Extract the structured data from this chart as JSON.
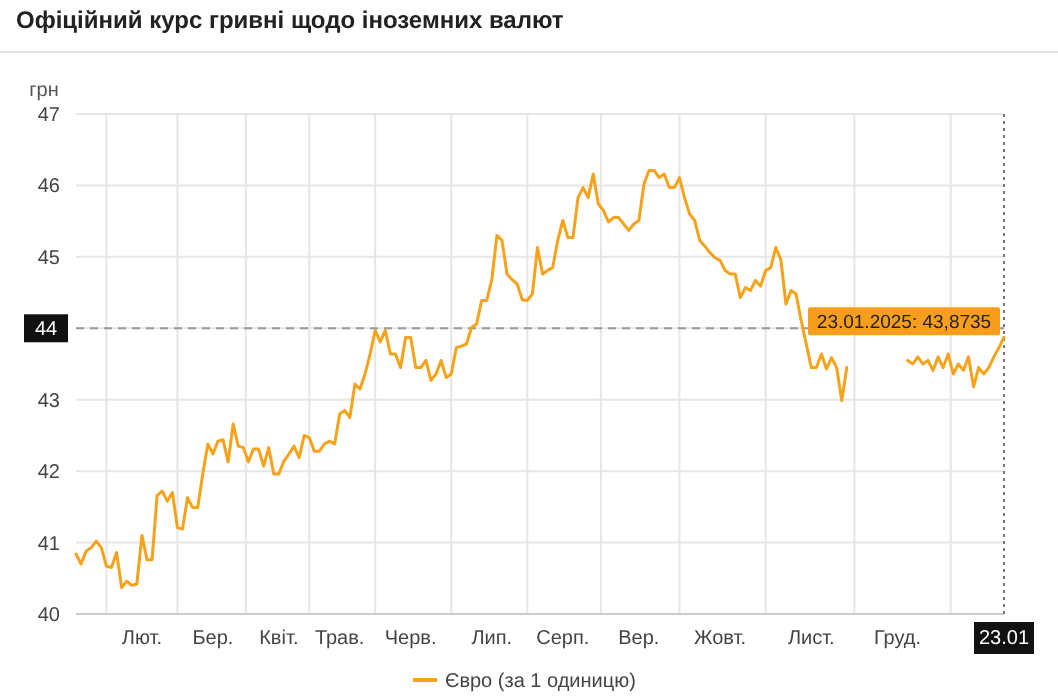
{
  "chart_data": {
    "type": "line",
    "title": "Офіційний курс гривні щодо іноземних валют",
    "ylabel": "грн",
    "categories": [
      null,
      null,
      null,
      null,
      null,
      null,
      null,
      null,
      null,
      null,
      null,
      null,
      null,
      "Лют.",
      null,
      null,
      null,
      null,
      null,
      null,
      null,
      null,
      null,
      null,
      null,
      null,
      null,
      "Бер.",
      null,
      null,
      null,
      null,
      null,
      null,
      null,
      null,
      null,
      null,
      null,
      null,
      "Квіт.",
      null,
      null,
      null,
      null,
      null,
      null,
      null,
      null,
      null,
      null,
      null,
      "Трав.",
      null,
      null,
      null,
      null,
      null,
      null,
      null,
      null,
      null,
      null,
      null,
      null,
      null,
      "Черв.",
      null,
      null,
      null,
      null,
      null,
      null,
      null,
      null,
      null,
      null,
      null,
      null,
      null,
      null,
      null,
      "Лип.",
      null,
      null,
      null,
      null,
      null,
      null,
      null,
      null,
      null,
      null,
      null,
      null,
      null,
      "Серп.",
      null,
      null,
      null,
      null,
      null,
      null,
      null,
      null,
      null,
      null,
      null,
      null,
      null,
      null,
      "Вер.",
      null,
      null,
      null,
      null,
      null,
      null,
      null,
      null,
      null,
      null,
      null,
      null,
      null,
      null,
      null,
      "Жовт.",
      null,
      null,
      null,
      null,
      null,
      null,
      null,
      null,
      null,
      null,
      null,
      null,
      null,
      null,
      null,
      null,
      null,
      "Лист.",
      null,
      null,
      null,
      null,
      null,
      null,
      null,
      null,
      null,
      null,
      null,
      null,
      null,
      null,
      null,
      null,
      "Груд.",
      null,
      null,
      null,
      null,
      null,
      null,
      null,
      null,
      null,
      null,
      null,
      null,
      null,
      null,
      null,
      null,
      null,
      null,
      null,
      null,
      "23.01"
    ],
    "series": [
      {
        "name": "Євро (за 1 одиницю)",
        "color": "#f7a21b",
        "values": [
          40.84,
          40.7,
          40.88,
          40.93,
          41.02,
          40.93,
          40.67,
          40.65,
          40.86,
          40.37,
          40.46,
          40.4,
          40.42,
          41.1,
          40.76,
          40.76,
          41.66,
          41.72,
          41.58,
          41.7,
          41.21,
          41.19,
          41.63,
          41.49,
          41.49,
          41.96,
          42.38,
          42.24,
          42.42,
          42.44,
          42.13,
          42.66,
          42.35,
          42.33,
          42.13,
          42.31,
          42.31,
          42.07,
          42.33,
          41.96,
          41.96,
          42.14,
          42.24,
          42.35,
          42.19,
          42.5,
          42.47,
          42.28,
          42.28,
          42.38,
          42.42,
          42.38,
          42.8,
          42.85,
          42.75,
          43.22,
          43.15,
          43.36,
          43.64,
          43.97,
          43.81,
          43.97,
          43.64,
          43.64,
          43.45,
          43.87,
          43.87,
          43.45,
          43.45,
          43.55,
          43.27,
          43.36,
          43.55,
          43.31,
          43.36,
          43.73,
          43.75,
          43.78,
          44.01,
          44.06,
          44.39,
          44.39,
          44.68,
          45.3,
          45.23,
          44.76,
          44.68,
          44.62,
          44.4,
          44.39,
          44.48,
          45.13,
          44.76,
          44.81,
          44.85,
          45.23,
          45.51,
          45.27,
          45.27,
          45.83,
          45.97,
          45.83,
          46.16,
          45.74,
          45.65,
          45.49,
          45.55,
          45.55,
          45.46,
          45.37,
          45.46,
          45.51,
          46.02,
          46.21,
          46.21,
          46.11,
          46.16,
          45.97,
          45.97,
          46.11,
          45.83,
          45.6,
          45.51,
          45.23,
          45.15,
          45.06,
          44.99,
          44.95,
          44.81,
          44.76,
          44.76,
          44.43,
          44.57,
          44.53,
          44.67,
          44.59,
          44.81,
          44.85,
          45.13,
          44.96,
          44.34,
          44.53,
          44.48,
          44.11,
          43.78,
          43.45,
          43.45,
          43.64,
          43.43,
          43.59,
          43.45,
          42.99,
          43.45,
          null,
          null,
          null,
          null,
          null,
          null,
          null,
          null,
          null,
          null,
          null,
          43.55,
          43.5,
          43.6,
          43.5,
          43.55,
          43.41,
          43.6,
          43.45,
          43.64,
          43.36,
          43.5,
          43.41,
          43.6,
          43.18,
          43.45,
          43.36,
          43.45,
          43.6,
          43.73,
          43.8735
        ]
      }
    ],
    "ylim": [
      40,
      47
    ],
    "yticks": [
      40,
      41,
      42,
      43,
      44,
      45,
      46,
      47
    ],
    "grid": true,
    "legend": "bottom",
    "marker": "none",
    "line_style": "solid",
    "ref_lines": [
      {
        "axis": "y",
        "value": 44,
        "label": "44",
        "line_style": "dashed"
      },
      {
        "axis": "x",
        "value": "23.01",
        "line_style": "dotted"
      }
    ],
    "annotations": [
      {
        "text": "23.01.2025: 43,8735",
        "x": "23.01",
        "y": 43.8735
      }
    ]
  }
}
